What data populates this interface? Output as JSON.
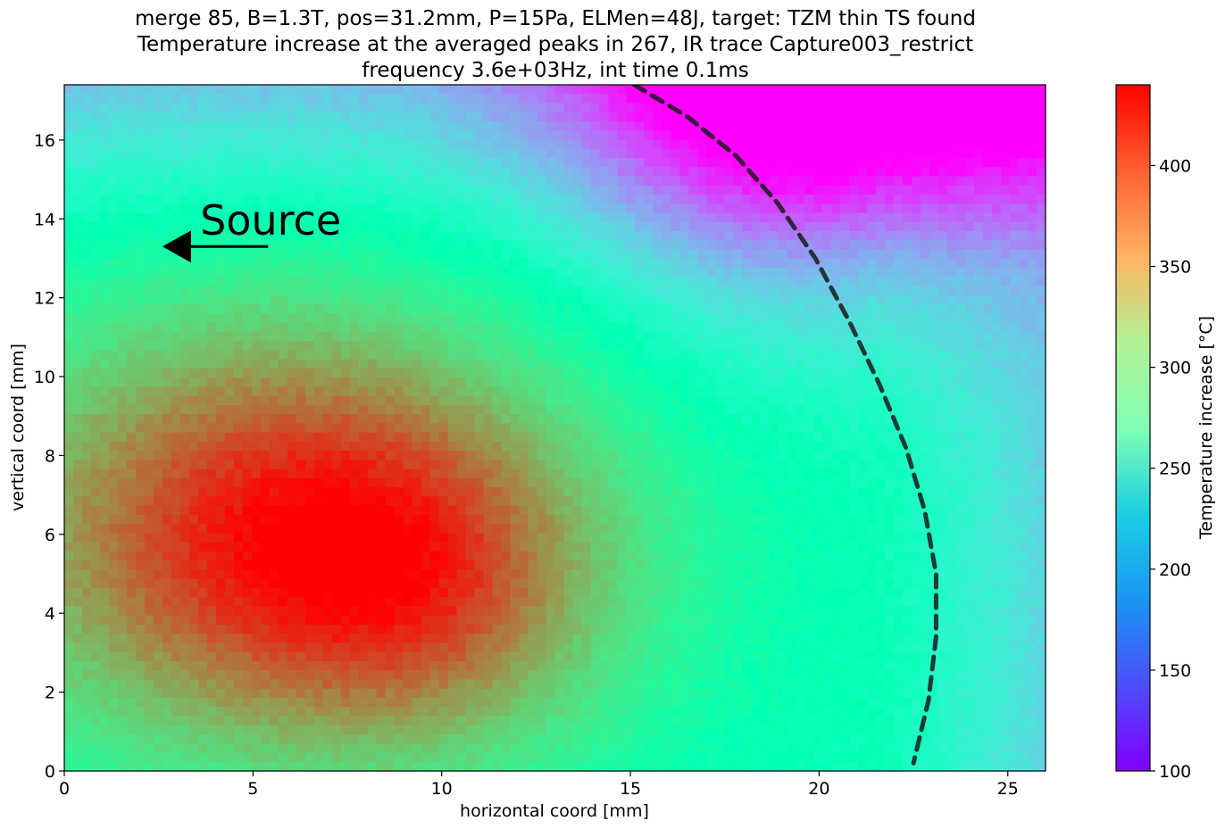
{
  "chart_data": {
    "type": "heatmap",
    "title_lines": [
      "merge 85, B=1.3T, pos=31.2mm, P=15Pa, ELMen=48J, target: TZM thin TS found",
      "Temperature increase at the averaged peaks in 267, IR trace Capture003_restrict",
      "frequency 3.6e+03Hz, int time 0.1ms"
    ],
    "xlabel": "horizontal coord [mm]",
    "ylabel": "vertical coord [mm]",
    "xlim": [
      0,
      26
    ],
    "ylim": [
      0,
      17.4
    ],
    "xticks": [
      0,
      5,
      10,
      15,
      20,
      25
    ],
    "yticks": [
      0,
      2,
      4,
      6,
      8,
      10,
      12,
      14,
      16
    ],
    "colorbar": {
      "label": "Temperature increase [°C]",
      "range": [
        100,
        440
      ],
      "ticks": [
        100,
        150,
        200,
        250,
        300,
        350,
        400
      ],
      "colormap": "rainbow"
    },
    "field_model": {
      "description_units": "mm and °C",
      "hot_spots": [
        {
          "x": 6.0,
          "y": 6.0,
          "sx": 6.0,
          "sy": 4.2,
          "amp": 170
        },
        {
          "x": 10.0,
          "y": 4.2,
          "sx": 3.2,
          "sy": 2.8,
          "amp": 40
        }
      ],
      "baseline": 262,
      "cold_corner": {
        "x": 19.5,
        "y": 17.4,
        "sx": 4.5,
        "sy": 4.0,
        "amp": -150
      },
      "top_edge_cooling": -70,
      "right_edge_cooling": -55
    },
    "boundary_curve": [
      [
        15.1,
        17.4
      ],
      [
        16.5,
        16.6
      ],
      [
        17.8,
        15.6
      ],
      [
        18.9,
        14.4
      ],
      [
        19.9,
        13.0
      ],
      [
        20.8,
        11.4
      ],
      [
        21.6,
        9.8
      ],
      [
        22.3,
        8.2
      ],
      [
        22.8,
        6.6
      ],
      [
        23.1,
        5.0
      ],
      [
        23.1,
        3.4
      ],
      [
        22.9,
        1.8
      ],
      [
        22.5,
        0.2
      ]
    ],
    "annotation": {
      "text": "Source",
      "text_x": 3.6,
      "text_y": 13.6,
      "arrow_from": [
        5.4,
        13.3
      ],
      "arrow_to": [
        2.6,
        13.3
      ]
    }
  }
}
